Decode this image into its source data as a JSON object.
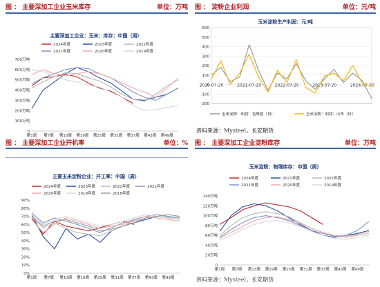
{
  "panels": {
    "tl": {
      "caption": "图 ： 主要深加工企业玉米库存",
      "unit": "单位：万吨"
    },
    "tr": {
      "caption": "图 ： 淀粉企业利润",
      "unit": "单位：元/吨"
    },
    "bl": {
      "caption": "图 ： 主要深加工企业开机率",
      "unit": "单位：%"
    },
    "br": {
      "caption": "图 ： 主要深加工企业淀粉库存",
      "unit": "单位：万吨"
    }
  },
  "source_text": "资料来源：Mysteel，长安期货",
  "chart_data": [
    {
      "id": "corn_stock",
      "type": "line",
      "title": "主要深加工企业：玉米：库存：中国（周）",
      "yticks": [
        "0",
        "100万吨",
        "200万吨",
        "300万吨",
        "400万吨",
        "500万吨",
        "600万吨",
        "700万吨"
      ],
      "ylim": [
        0,
        700
      ],
      "xticks": [
        "第1周",
        "第7周",
        "第13周",
        "第19周",
        "第25周",
        "第31周",
        "第37周",
        "第43周",
        "第49周"
      ],
      "xlim": [
        1,
        53
      ],
      "x": [
        1,
        5,
        9,
        13,
        17,
        21,
        25,
        29,
        33,
        37,
        41,
        45,
        49,
        53
      ],
      "series": [
        {
          "name": "2024年度",
          "color": "#c0282a",
          "values": [
            440,
            520,
            530,
            555,
            530,
            470,
            420,
            390,
            330,
            270,
            null,
            null,
            null,
            null
          ]
        },
        {
          "name": "2023年度",
          "color": "#2b4fa0",
          "values": [
            220,
            400,
            480,
            560,
            620,
            580,
            520,
            470,
            390,
            310,
            300,
            330,
            360,
            420
          ]
        },
        {
          "name": "2022年度",
          "color": "#b8b8b8",
          "values": [
            420,
            480,
            530,
            570,
            560,
            520,
            490,
            430,
            360,
            310,
            290,
            360,
            440,
            500
          ]
        },
        {
          "name": "2021年度",
          "color": "#7f96c4",
          "values": [
            460,
            520,
            560,
            600,
            620,
            610,
            560,
            520,
            450,
            380,
            330,
            300,
            360,
            420
          ]
        },
        {
          "name": "2020年度",
          "color": "#efaaa8",
          "values": [
            550,
            600,
            560,
            540,
            560,
            580,
            560,
            520,
            470,
            420,
            380,
            330,
            420,
            520
          ]
        },
        {
          "name": "2019年度",
          "color": "#d8d8d8",
          "values": [
            600,
            580,
            540,
            500,
            480,
            450,
            430,
            380,
            330,
            250,
            200,
            210,
            230,
            250
          ]
        }
      ]
    },
    {
      "id": "starch_profit",
      "type": "line",
      "title": "玉米淀粉生产利润：元/吨",
      "yticks": [
        "-200",
        "-100",
        "0",
        "100",
        "200",
        "300",
        "400",
        "500",
        "600"
      ],
      "ylim": [
        -200,
        600
      ],
      "xticks": [
        "2020-07-20",
        "2021-07-20",
        "2022-07-20",
        "2023-07-20",
        "2024-07-20"
      ],
      "x": [
        "2020-07",
        "2020-10",
        "2021-01",
        "2021-04",
        "2021-07",
        "2021-10",
        "2022-01",
        "2022-04",
        "2022-07",
        "2022-10",
        "2023-01",
        "2023-04",
        "2023-07",
        "2023-10",
        "2024-01",
        "2024-04",
        "2024-07",
        "2024-09"
      ],
      "series": [
        {
          "name": "玉米淀粉：利润：吉林省（日）",
          "color": "#9a9a9a",
          "values": [
            100,
            180,
            30,
            80,
            420,
            150,
            -60,
            120,
            60,
            220,
            40,
            -50,
            60,
            160,
            20,
            120,
            40,
            -150
          ]
        },
        {
          "name": "玉米淀粉：利润：山东（日）",
          "color": "#f2b711",
          "values": [
            60,
            250,
            0,
            120,
            320,
            80,
            -80,
            150,
            20,
            260,
            -30,
            -90,
            90,
            120,
            40,
            200,
            10,
            -20
          ]
        }
      ]
    },
    {
      "id": "operating_rate",
      "type": "line",
      "title": "主要玉米淀粉企业：开工率：中国（周）",
      "yticks": [
        "0%",
        "10%",
        "20%",
        "30%",
        "40%",
        "50%",
        "60%",
        "70%",
        "80%",
        "90%"
      ],
      "ylim": [
        0,
        90
      ],
      "xticks": [
        "第1周",
        "第7周",
        "第13周",
        "第19周",
        "第25周",
        "第31周",
        "第37周",
        "第43周",
        "第49周"
      ],
      "xlim": [
        1,
        53
      ],
      "x": [
        1,
        5,
        9,
        13,
        17,
        21,
        25,
        29,
        33,
        37,
        41,
        45,
        49,
        53
      ],
      "series": [
        {
          "name": "2024年度",
          "color": "#c0282a",
          "values": [
            68,
            48,
            64,
            58,
            55,
            52,
            56,
            60,
            64,
            60,
            null,
            null,
            null,
            null
          ]
        },
        {
          "name": "2023年度",
          "color": "#2b4fa0",
          "values": [
            72,
            45,
            30,
            55,
            42,
            48,
            38,
            52,
            58,
            62,
            66,
            70,
            68,
            66
          ]
        },
        {
          "name": "2022年度",
          "color": "#b8b8b8",
          "values": [
            70,
            56,
            62,
            55,
            50,
            48,
            46,
            52,
            58,
            64,
            68,
            70,
            69,
            68
          ]
        },
        {
          "name": "2021年度",
          "color": "#7f96c4",
          "values": [
            74,
            62,
            68,
            64,
            60,
            55,
            50,
            56,
            62,
            66,
            70,
            72,
            70,
            68
          ]
        },
        {
          "name": "2020年度",
          "color": "#efaaa8",
          "values": [
            66,
            50,
            60,
            68,
            64,
            60,
            55,
            58,
            60,
            65,
            70,
            68,
            66,
            64
          ]
        },
        {
          "name": "2019年度",
          "color": "#d8d8d8",
          "values": [
            72,
            60,
            66,
            70,
            66,
            62,
            58,
            60,
            64,
            68,
            72,
            70,
            68,
            66
          ]
        },
        {
          "name": "2018年度",
          "color": "#9a9a9a",
          "values": [
            70,
            58,
            64,
            66,
            62,
            58,
            52,
            54,
            58,
            62,
            68,
            70,
            72,
            70
          ]
        }
      ]
    },
    {
      "id": "starch_stock",
      "type": "line",
      "title": "玉米淀粉：物理库存：中国（周）",
      "yticks": [
        "0",
        "20万吨",
        "40万吨",
        "60万吨",
        "80万吨",
        "100万吨",
        "120万吨",
        "140万吨"
      ],
      "ylim": [
        0,
        140
      ],
      "xticks": [
        "第1周",
        "第7周",
        "第13周",
        "第19周",
        "第25周",
        "第31周",
        "第37周",
        "第43周",
        "第49周"
      ],
      "xlim": [
        1,
        53
      ],
      "x": [
        1,
        5,
        9,
        13,
        17,
        21,
        25,
        29,
        33,
        37,
        41,
        45,
        49,
        53
      ],
      "series": [
        {
          "name": "2024年度",
          "color": "#c0282a",
          "values": [
            82,
            96,
            112,
            120,
            126,
            122,
            118,
            110,
            96,
            82,
            null,
            null,
            null,
            null
          ]
        },
        {
          "name": "2023年度",
          "color": "#2b4fa0",
          "values": [
            68,
            100,
            118,
            124,
            120,
            110,
            96,
            82,
            70,
            60,
            56,
            60,
            64,
            70
          ]
        },
        {
          "name": "2022年度",
          "color": "#b8b8b8",
          "values": [
            60,
            80,
            96,
            104,
            108,
            104,
            98,
            86,
            74,
            66,
            58,
            56,
            60,
            64
          ]
        },
        {
          "name": "2021年度",
          "color": "#7f96c4",
          "values": [
            56,
            72,
            86,
            96,
            100,
            96,
            90,
            80,
            70,
            64,
            58,
            60,
            70,
            88
          ]
        },
        {
          "name": "2020年度",
          "color": "#efaaa8",
          "values": [
            54,
            66,
            78,
            90,
            96,
            98,
            92,
            84,
            74,
            66,
            60,
            58,
            62,
            68
          ]
        },
        {
          "name": "2019年度",
          "color": "#d8d8d8",
          "values": [
            50,
            60,
            72,
            82,
            88,
            90,
            86,
            78,
            68,
            60,
            54,
            52,
            56,
            60
          ]
        }
      ]
    }
  ]
}
